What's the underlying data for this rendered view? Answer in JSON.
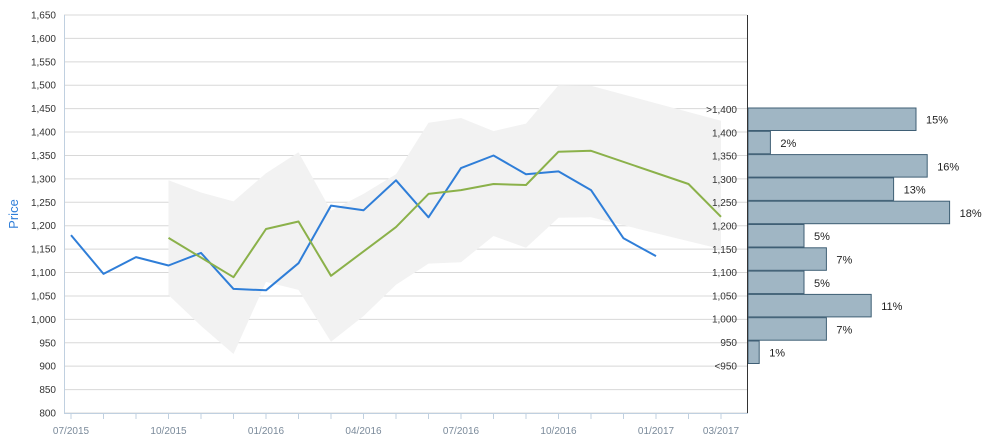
{
  "chart_data": {
    "type": "line",
    "ylabel": "Price",
    "ylim": [
      800,
      1650
    ],
    "yticks": [
      800,
      850,
      900,
      950,
      1000,
      1050,
      1100,
      1150,
      1200,
      1250,
      1300,
      1350,
      1400,
      1450,
      1500,
      1550,
      1600,
      1650
    ],
    "ytick_labels": [
      "800",
      "850",
      "900",
      "950",
      "1,000",
      "1,050",
      "1,100",
      "1,150",
      "1,200",
      "1,250",
      "1,300",
      "1,350",
      "1,400",
      "1,450",
      "1,500",
      "1,550",
      "1,600",
      "1,650"
    ],
    "x_ticks": [
      "07/2015",
      "10/2015",
      "01/2016",
      "04/2016",
      "07/2016",
      "10/2016",
      "01/2017",
      "03/2017"
    ],
    "grid": true,
    "series": [
      {
        "color": "#2f7ed8",
        "x": [
          "07/2015",
          "08/2015",
          "09/2015",
          "10/2015",
          "11/2015",
          "12/2015",
          "01/2016",
          "02/2016",
          "03/2016",
          "04/2016",
          "05/2016",
          "06/2016",
          "07/2016",
          "08/2016",
          "09/2016",
          "10/2016",
          "11/2016",
          "12/2016",
          "01/2017"
        ],
        "values": [
          1180,
          1097,
          1133,
          1115,
          1142,
          1065,
          1062,
          1120,
          1243,
          1233,
          1297,
          1218,
          1323,
          1350,
          1310,
          1316,
          1276,
          1173,
          1135
        ]
      },
      {
        "color": "#8bb14a",
        "x": [
          "10/2015",
          "12/2015",
          "01/2016",
          "02/2016",
          "03/2016",
          "05/2016",
          "06/2016",
          "07/2016",
          "08/2016",
          "09/2016",
          "10/2016",
          "11/2016",
          "02/2017",
          "03/2017"
        ],
        "values": [
          1174,
          1090,
          1193,
          1209,
          1093,
          1197,
          1268,
          1276,
          1289,
          1287,
          1358,
          1360,
          1289,
          1219
        ]
      }
    ],
    "band": {
      "color": "#f2f2f2",
      "x": [
        "10/2015",
        "11/2015",
        "12/2015",
        "01/2016",
        "02/2016",
        "03/2016",
        "04/2016",
        "05/2016",
        "06/2016",
        "07/2016",
        "08/2016",
        "09/2016",
        "10/2016",
        "11/2016",
        "03/2017"
      ],
      "upper": [
        1297,
        1271,
        1252,
        1312,
        1357,
        1232,
        1268,
        1310,
        1420,
        1430,
        1402,
        1418,
        1500,
        1499,
        1424
      ],
      "lower": [
        1052,
        986,
        926,
        1080,
        1063,
        952,
        1007,
        1074,
        1119,
        1122,
        1178,
        1153,
        1217,
        1218,
        1150
      ]
    },
    "distribution": {
      "color": "#a0b6c4",
      "categories": [
        ">1,400",
        "1,400",
        "1,350",
        "1,300",
        "1,250",
        "1,200",
        "1,150",
        "1,100",
        "1,050",
        "1,000",
        "950",
        "<950"
      ],
      "values": [
        15,
        2,
        16,
        13,
        18,
        5,
        7,
        5,
        11,
        7,
        1,
        null
      ],
      "labels": [
        "15%",
        "2%",
        "16%",
        "13%",
        "18%",
        "5%",
        "7%",
        "5%",
        "11%",
        "7%",
        "1%",
        ""
      ]
    }
  }
}
